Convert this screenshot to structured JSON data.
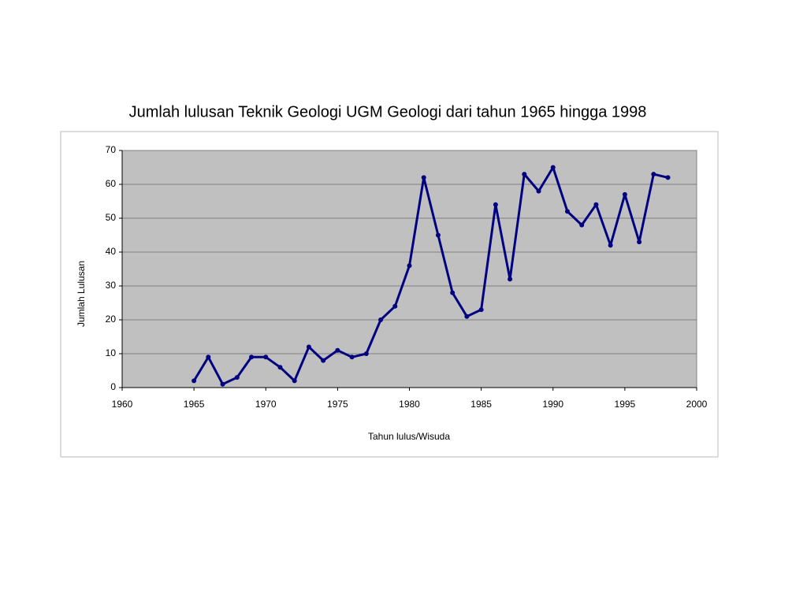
{
  "chart_data": {
    "type": "line",
    "title": "Jumlah lulusan Teknik Geologi UGM Geologi dari tahun 1965 hingga 1998",
    "x_label": "Tahun lulus/Wisuda",
    "y_label": "Jumlah Lulusan",
    "x": [
      1965,
      1966,
      1967,
      1968,
      1969,
      1970,
      1971,
      1972,
      1973,
      1974,
      1975,
      1976,
      1977,
      1978,
      1979,
      1980,
      1981,
      1982,
      1983,
      1984,
      1985,
      1986,
      1987,
      1988,
      1989,
      1990,
      1991,
      1992,
      1993,
      1994,
      1995,
      1996,
      1997,
      1998
    ],
    "values": [
      2,
      9,
      1,
      3,
      9,
      9,
      6,
      2,
      12,
      8,
      11,
      9,
      10,
      20,
      24,
      36,
      62,
      45,
      28,
      21,
      23,
      54,
      32,
      63,
      58,
      65,
      52,
      48,
      54,
      42,
      57,
      43,
      63,
      62
    ],
    "color": "#000080",
    "xlim": [
      1960,
      2000
    ],
    "xticks": [
      1960,
      1965,
      1970,
      1975,
      1980,
      1985,
      1990,
      1995,
      2000
    ],
    "ylim": [
      0,
      70
    ],
    "yticks": [
      0,
      10,
      20,
      30,
      40,
      50,
      60,
      70
    ],
    "grid": true
  }
}
